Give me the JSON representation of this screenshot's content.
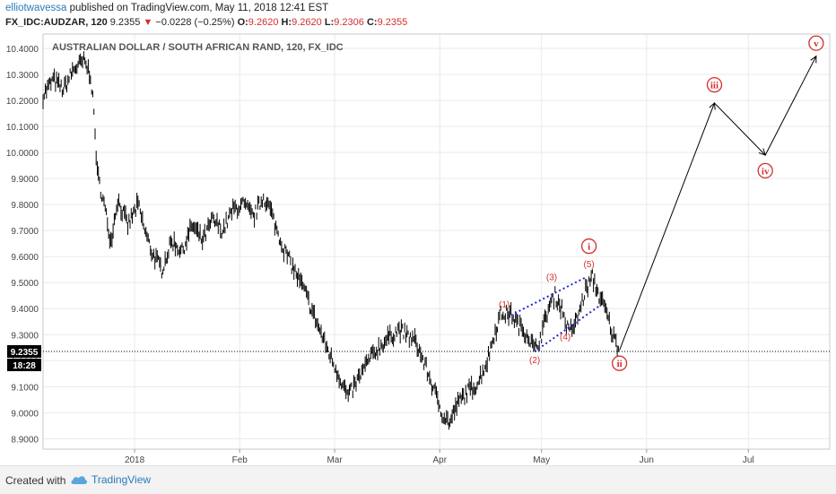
{
  "header": {
    "author": "elliotwavessa",
    "published_text": "published on TradingView.com, May 11, 2018 12:41 EST",
    "symbol": "FX_IDC:AUDZAR, 120",
    "last": "9.2355",
    "down_arrow": "▼",
    "change": "−0.0228 (−0.25%)",
    "o_label": "O:",
    "o": "9.2620",
    "h_label": "H:",
    "h": "9.2620",
    "l_label": "L:",
    "l": "9.2306",
    "c_label": "C:",
    "c": "9.2355"
  },
  "footer": {
    "created_with": "Created with",
    "brand": "TradingView",
    "logo_icon": "tradingview-cloud-icon"
  },
  "chart_data": {
    "type": "line",
    "title": "AUSTRALIAN DOLLAR / SOUTH AFRICAN RAND, 120, FX_IDC",
    "ylim": [
      8.86,
      10.455
    ],
    "y_ticks": [
      "10.4000",
      "10.3000",
      "10.2000",
      "10.1000",
      "10.0000",
      "9.9000",
      "9.8000",
      "9.7000",
      "9.6000",
      "9.5000",
      "9.4000",
      "9.3000",
      "9.2000",
      "9.1000",
      "9.0000",
      "8.9000"
    ],
    "x_ticks": [
      "2018",
      "Feb",
      "Mar",
      "Apr",
      "May",
      "Jun",
      "Jul"
    ],
    "x_range": [
      "2017-12-05",
      "2018-07-25"
    ],
    "x_tick_dates": [
      "2018-01-01",
      "2018-02-01",
      "2018-03-01",
      "2018-04-01",
      "2018-05-01",
      "2018-06-01",
      "2018-07-01"
    ],
    "price_label": "9.2355",
    "time_label": "18:28",
    "grid": true,
    "series": [
      {
        "values": [
          [
            "2017-12-05",
            10.22
          ],
          [
            "2017-12-08",
            10.28
          ],
          [
            "2017-12-11",
            10.24
          ],
          [
            "2017-12-14",
            10.32
          ],
          [
            "2017-12-17",
            10.35
          ],
          [
            "2017-12-19",
            10.3
          ],
          [
            "2017-12-20",
            10.15
          ],
          [
            "2017-12-21",
            9.92
          ],
          [
            "2017-12-23",
            9.8
          ],
          [
            "2017-12-25",
            9.66
          ],
          [
            "2017-12-27",
            9.82
          ],
          [
            "2017-12-30",
            9.72
          ],
          [
            "2018-01-02",
            9.8
          ],
          [
            "2018-01-04",
            9.7
          ],
          [
            "2018-01-06",
            9.62
          ],
          [
            "2018-01-09",
            9.55
          ],
          [
            "2018-01-12",
            9.66
          ],
          [
            "2018-01-15",
            9.62
          ],
          [
            "2018-01-18",
            9.72
          ],
          [
            "2018-01-21",
            9.66
          ],
          [
            "2018-01-24",
            9.74
          ],
          [
            "2018-01-27",
            9.7
          ],
          [
            "2018-01-30",
            9.78
          ],
          [
            "2018-02-02",
            9.8
          ],
          [
            "2018-02-05",
            9.75
          ],
          [
            "2018-02-08",
            9.83
          ],
          [
            "2018-02-10",
            9.78
          ],
          [
            "2018-02-12",
            9.7
          ],
          [
            "2018-02-14",
            9.63
          ],
          [
            "2018-02-17",
            9.55
          ],
          [
            "2018-02-20",
            9.47
          ],
          [
            "2018-02-23",
            9.37
          ],
          [
            "2018-02-26",
            9.27
          ],
          [
            "2018-03-01",
            9.18
          ],
          [
            "2018-03-03",
            9.12
          ],
          [
            "2018-03-05",
            9.06
          ],
          [
            "2018-03-08",
            9.13
          ],
          [
            "2018-03-11",
            9.2
          ],
          [
            "2018-03-14",
            9.25
          ],
          [
            "2018-03-17",
            9.29
          ],
          [
            "2018-03-20",
            9.32
          ],
          [
            "2018-03-23",
            9.29
          ],
          [
            "2018-03-25",
            9.27
          ],
          [
            "2018-03-28",
            9.17
          ],
          [
            "2018-03-31",
            9.06
          ],
          [
            "2018-04-02",
            8.99
          ],
          [
            "2018-04-04",
            8.96
          ],
          [
            "2018-04-06",
            9.03
          ],
          [
            "2018-04-09",
            9.08
          ],
          [
            "2018-04-12",
            9.11
          ],
          [
            "2018-04-15",
            9.2
          ],
          [
            "2018-04-17",
            9.3
          ],
          [
            "2018-04-19",
            9.38
          ],
          [
            "2018-04-22",
            9.38
          ],
          [
            "2018-04-24",
            9.34
          ],
          [
            "2018-04-27",
            9.3
          ],
          [
            "2018-04-29",
            9.24
          ],
          [
            "2018-05-01",
            9.3
          ],
          [
            "2018-05-03",
            9.4
          ],
          [
            "2018-05-05",
            9.45
          ],
          [
            "2018-05-07",
            9.4
          ],
          [
            "2018-05-09",
            9.31
          ],
          [
            "2018-05-11",
            9.34
          ],
          [
            "2018-05-14",
            9.47
          ],
          [
            "2018-05-16",
            9.52
          ],
          [
            "2018-05-18",
            9.45
          ],
          [
            "2018-05-20",
            9.39
          ],
          [
            "2018-05-22",
            9.3
          ],
          [
            "2018-05-24",
            9.24
          ]
        ]
      }
    ],
    "trend_lines": [
      {
        "from": [
          "2018-04-22",
          9.375
        ],
        "to": [
          "2018-05-14",
          9.52
        ]
      },
      {
        "from": [
          "2018-04-29",
          9.235
        ],
        "to": [
          "2018-05-18",
          9.41
        ]
      }
    ],
    "projection": [
      [
        "2018-05-24",
        9.24
      ],
      [
        "2018-06-21",
        10.19
      ],
      [
        "2018-07-06",
        9.99
      ],
      [
        "2018-07-21",
        10.37
      ]
    ],
    "annotations": [
      {
        "text": "(1)",
        "x": "2018-04-20",
        "y": 9.405
      },
      {
        "text": "(2)",
        "x": "2018-04-29",
        "y": 9.19
      },
      {
        "text": "(3)",
        "x": "2018-05-04",
        "y": 9.51
      },
      {
        "text": "(4)",
        "x": "2018-05-08",
        "y": 9.28
      },
      {
        "text": "(5)",
        "x": "2018-05-15",
        "y": 9.56
      }
    ],
    "wave_labels": [
      {
        "text": "i",
        "x": "2018-05-15",
        "y": 9.64
      },
      {
        "text": "ii",
        "x": "2018-05-24",
        "y": 9.19
      },
      {
        "text": "iii",
        "x": "2018-06-21",
        "y": 10.26
      },
      {
        "text": "iv",
        "x": "2018-07-06",
        "y": 9.93
      },
      {
        "text": "v",
        "x": "2018-07-21",
        "y": 10.42
      }
    ],
    "colors": {
      "price": "#000000",
      "trend": "#1f25d6",
      "wave": "#d32f2f",
      "grid": "#e9eaee",
      "projection": "#000000"
    }
  }
}
